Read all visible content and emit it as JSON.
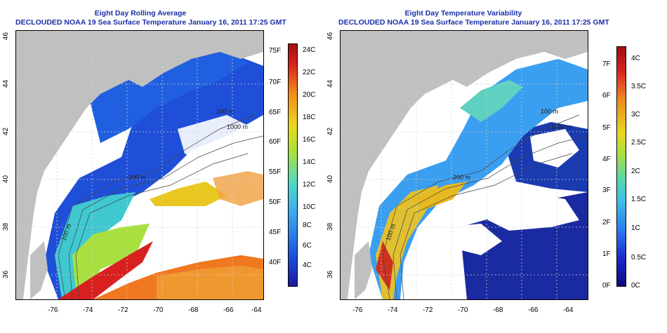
{
  "maps": [
    {
      "title": "Eight Day Rolling Average",
      "subtitle": "DECLOUDED NOAA 19 Sea Surface Temperature January 16, 2011 17:25 GMT",
      "x_ticks": [
        "-76",
        "-74",
        "-72",
        "-70",
        "-68",
        "-66",
        "-64"
      ],
      "y_ticks": [
        "36",
        "38",
        "40",
        "42",
        "44",
        "46"
      ],
      "depth_labels": [
        "100 m",
        "200 m",
        "1000 m",
        "100 m"
      ],
      "colorbar_left": [
        "75F",
        "70F",
        "65F",
        "60F",
        "55F",
        "50F",
        "45F",
        "40F"
      ],
      "colorbar_right": [
        "24C",
        "22C",
        "20C",
        "18C",
        "16C",
        "14C",
        "12C",
        "10C",
        "8C",
        "6C",
        "4C"
      ]
    },
    {
      "title": "Eight Day Temperature Variability",
      "subtitle": "DECLOUDED NOAA 19 Sea Surface Temperature January 16, 2011 17:25 GMT",
      "x_ticks": [
        "-76",
        "-74",
        "-72",
        "-70",
        "-68",
        "-66",
        "-64"
      ],
      "y_ticks": [
        "36",
        "38",
        "40",
        "42",
        "44",
        "46"
      ],
      "depth_labels": [
        "100 m",
        "200 m",
        "1000 m",
        "100 m"
      ],
      "colorbar_left": [
        "7F",
        "6F",
        "5F",
        "4F",
        "3F",
        "2F",
        "1F",
        "0F"
      ],
      "colorbar_right": [
        "4C",
        "3.5C",
        "3C",
        "2.5C",
        "2C",
        "1.5C",
        "1C",
        "0.5C",
        "0C"
      ]
    }
  ],
  "colors": {
    "title": "#1a2fa8",
    "land": "#c0c0c0",
    "grid": "#d6d6d6"
  }
}
